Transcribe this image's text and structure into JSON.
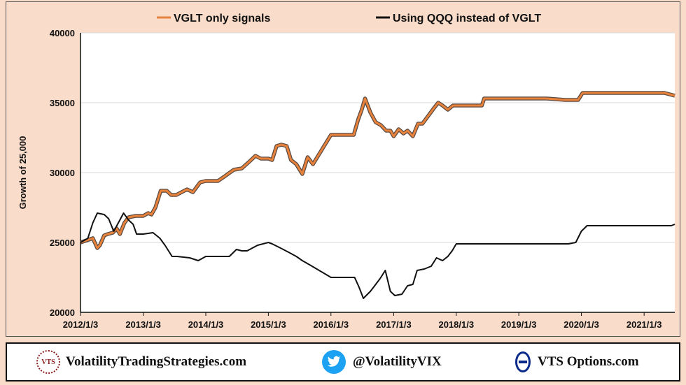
{
  "chart_data": {
    "type": "line",
    "title": "",
    "xlabel": "",
    "ylabel": "Growth of 25,000",
    "ylim": [
      20000,
      40000
    ],
    "yticks": [
      20000,
      25000,
      30000,
      35000,
      40000
    ],
    "ytick_labels": [
      "20000",
      "25000",
      "30000",
      "35000",
      "40000"
    ],
    "xlim": [
      "2012-01-03",
      "2021-07-01"
    ],
    "xticks": [
      "2012-01-03",
      "2013-01-03",
      "2014-01-03",
      "2015-01-03",
      "2016-01-03",
      "2017-01-03",
      "2018-01-03",
      "2019-01-03",
      "2020-01-03",
      "2021-01-03"
    ],
    "xtick_labels": [
      "2012/1/3",
      "2013/1/3",
      "2014/1/3",
      "2015/1/3",
      "2016/1/3",
      "2017/1/3",
      "2018/1/3",
      "2019/1/3",
      "2020/1/3",
      "2021/1/3"
    ],
    "grid": "horizontal",
    "legend_position": "top",
    "series": [
      {
        "name": "VGLT only signals",
        "color": "#e8823a",
        "x": [
          "2012-01-03",
          "2012-03-15",
          "2012-04-10",
          "2012-04-25",
          "2012-05-20",
          "2012-06-10",
          "2012-07-10",
          "2012-08-01",
          "2012-08-20",
          "2012-09-15",
          "2012-10-10",
          "2012-11-20",
          "2013-01-03",
          "2013-02-01",
          "2013-02-20",
          "2013-03-15",
          "2013-04-15",
          "2013-05-20",
          "2013-06-15",
          "2013-07-15",
          "2013-09-15",
          "2013-10-20",
          "2013-12-01",
          "2014-01-03",
          "2014-03-15",
          "2014-05-01",
          "2014-06-15",
          "2014-08-01",
          "2014-09-15",
          "2014-10-20",
          "2014-11-20",
          "2015-01-03",
          "2015-01-25",
          "2015-02-20",
          "2015-03-20",
          "2015-04-20",
          "2015-05-15",
          "2015-06-15",
          "2015-07-20",
          "2015-08-20",
          "2015-09-20",
          "2016-01-03",
          "2016-02-01",
          "2016-03-01",
          "2016-03-25",
          "2016-04-20",
          "2016-05-15",
          "2016-06-10",
          "2016-07-01",
          "2016-07-20",
          "2016-08-20",
          "2016-09-20",
          "2016-10-20",
          "2016-11-20",
          "2016-12-15",
          "2017-01-03",
          "2017-02-01",
          "2017-03-01",
          "2017-03-25",
          "2017-04-25",
          "2017-05-25",
          "2017-06-20",
          "2017-07-20",
          "2017-08-25",
          "2017-09-20",
          "2017-10-15",
          "2017-11-15",
          "2017-12-15",
          "2018-02-01",
          "2018-06-01",
          "2018-06-15",
          "2019-01-03",
          "2019-06-15",
          "2019-10-01",
          "2019-11-15",
          "2019-12-15",
          "2020-01-10",
          "2020-03-15",
          "2021-01-03",
          "2021-05-01",
          "2021-07-01"
        ],
        "y": [
          25000,
          25300,
          24600,
          24800,
          25500,
          25600,
          25700,
          26000,
          25600,
          26400,
          26800,
          26900,
          26900,
          27100,
          27000,
          27500,
          28700,
          28700,
          28400,
          28400,
          28800,
          28600,
          29300,
          29400,
          29400,
          29800,
          30200,
          30300,
          30800,
          31200,
          31000,
          31000,
          30900,
          31900,
          32000,
          31900,
          30900,
          30600,
          29900,
          31100,
          30600,
          32700,
          32700,
          32700,
          32700,
          32700,
          32700,
          33800,
          34500,
          35300,
          34300,
          33600,
          33400,
          33000,
          33000,
          32600,
          33100,
          32800,
          33000,
          32600,
          33500,
          33500,
          34000,
          34600,
          35000,
          34800,
          34500,
          34800,
          34800,
          34800,
          35300,
          35300,
          35300,
          35200,
          35200,
          35200,
          35700,
          35700,
          35700,
          35700,
          35500
        ]
      },
      {
        "name": "Using QQQ instead of VGLT",
        "color": "#111111",
        "x": [
          "2012-01-03",
          "2012-02-15",
          "2012-03-15",
          "2012-04-10",
          "2012-05-20",
          "2012-06-15",
          "2012-07-15",
          "2012-08-15",
          "2012-09-10",
          "2012-10-10",
          "2012-11-05",
          "2012-11-25",
          "2013-01-03",
          "2013-03-01",
          "2013-04-10",
          "2013-05-10",
          "2013-06-20",
          "2013-07-20",
          "2013-10-01",
          "2013-11-20",
          "2014-01-03",
          "2014-02-15",
          "2014-04-01",
          "2014-05-20",
          "2014-07-01",
          "2014-08-01",
          "2014-09-01",
          "2014-11-01",
          "2015-01-03",
          "2015-01-25",
          "2015-03-15",
          "2015-05-01",
          "2015-06-15",
          "2015-07-20",
          "2015-09-01",
          "2016-01-03",
          "2016-02-15",
          "2016-03-20",
          "2016-04-10",
          "2016-05-20",
          "2016-06-15",
          "2016-07-10",
          "2016-08-20",
          "2016-10-15",
          "2016-11-15",
          "2016-12-15",
          "2017-01-10",
          "2017-02-20",
          "2017-03-25",
          "2017-04-25",
          "2017-05-20",
          "2017-07-01",
          "2017-08-10",
          "2017-09-10",
          "2017-10-15",
          "2017-11-15",
          "2017-12-10",
          "2018-01-03",
          "2018-06-15",
          "2019-01-03",
          "2019-10-20",
          "2019-12-01",
          "2020-01-03",
          "2020-02-05",
          "2020-02-15",
          "2021-01-03",
          "2021-06-10",
          "2021-07-01"
        ],
        "y": [
          25000,
          25300,
          26400,
          27100,
          27000,
          26700,
          25800,
          26500,
          27100,
          26600,
          26300,
          25600,
          25600,
          25700,
          25300,
          24800,
          24000,
          24000,
          23900,
          23700,
          24000,
          24000,
          24000,
          24000,
          24500,
          24400,
          24400,
          24800,
          25000,
          24900,
          24600,
          24300,
          24000,
          23700,
          23400,
          22500,
          22500,
          22500,
          22500,
          22500,
          21800,
          21000,
          21500,
          22400,
          23000,
          21500,
          21200,
          21300,
          21900,
          22000,
          23000,
          23100,
          23300,
          23900,
          23700,
          24000,
          24400,
          24900,
          24900,
          24900,
          24900,
          25000,
          25800,
          26200,
          26200,
          26200,
          26200,
          26300
        ]
      }
    ]
  },
  "footer": {
    "seal_text": "VTS",
    "site": "VolatilityTradingStrategies.com",
    "twitter": "@VolatilityVIX",
    "options": "VTS Options.com"
  }
}
